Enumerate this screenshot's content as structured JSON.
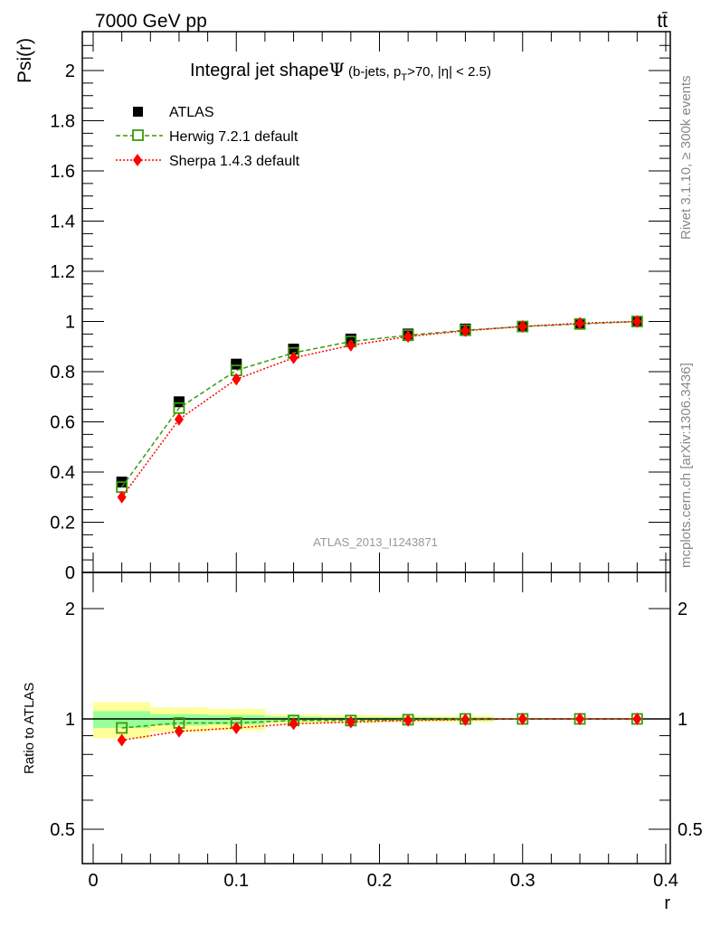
{
  "chart_data": {
    "type": "line",
    "header_left": "7000 GeV pp",
    "header_right": "tt̄",
    "title": "Integral jet shape",
    "title_symbol": "Ψ",
    "title_cuts_a": "(b-jets, p",
    "title_cuts_sub": "T",
    "title_cuts_b": ">70, |η| < 2.5)",
    "ylabel": "Psi(r)",
    "ratio_ylabel": "Ratio to ATLAS",
    "xlabel": "r",
    "xlim": [
      0,
      0.4
    ],
    "ylim": [
      0,
      2.15
    ],
    "ratio_ylim": [
      0.4,
      2.5
    ],
    "ratio_scale": "log",
    "xticks": [
      "0",
      "0.1",
      "0.2",
      "0.3",
      "0.4"
    ],
    "yticks": [
      "0",
      "0.2",
      "0.4",
      "0.6",
      "0.8",
      "1",
      "1.2",
      "1.4",
      "1.6",
      "1.8",
      "2"
    ],
    "ratio_yticks": [
      "0.5",
      "1",
      "2"
    ],
    "side_text_1": "Rivet 3.1.10, ≥ 300k events",
    "side_text_2": "mcplots.cern.ch [arXiv:1306.3436]",
    "watermark": "ATLAS_2013_I1243871",
    "legend_position": "top-left",
    "x": [
      0.02,
      0.06,
      0.1,
      0.14,
      0.18,
      0.22,
      0.26,
      0.3,
      0.34,
      0.38
    ],
    "series": [
      {
        "name": "ATLAS",
        "color": "#000000",
        "values": [
          0.36,
          0.68,
          0.83,
          0.89,
          0.93,
          0.95,
          0.97,
          0.98,
          0.99,
          1.0
        ]
      },
      {
        "name": "Herwig 7.2.1 default",
        "color": "#3a9a0a",
        "values": [
          0.34,
          0.655,
          0.805,
          0.875,
          0.92,
          0.945,
          0.965,
          0.98,
          0.99,
          1.0
        ],
        "ratio": [
          0.945,
          0.975,
          0.975,
          0.99,
          0.99,
          0.995,
          1.0,
          1.0,
          1.0,
          1.0
        ]
      },
      {
        "name": "Sherpa 1.4.3 default",
        "color": "#ff0000",
        "values": [
          0.3,
          0.61,
          0.77,
          0.855,
          0.905,
          0.94,
          0.963,
          0.98,
          0.993,
          1.0
        ],
        "ratio": [
          0.875,
          0.925,
          0.945,
          0.97,
          0.98,
          0.99,
          0.995,
          1.0,
          1.0,
          1.0
        ]
      }
    ],
    "ratio_band_bins": [
      [
        0,
        0.04
      ],
      [
        0.04,
        0.08
      ],
      [
        0.08,
        0.12
      ],
      [
        0.12,
        0.16
      ],
      [
        0.16,
        0.2
      ],
      [
        0.2,
        0.24
      ],
      [
        0.24,
        0.28
      ]
    ],
    "ratio_band_yellow": [
      [
        0.885,
        1.11
      ],
      [
        0.92,
        1.075
      ],
      [
        0.93,
        1.065
      ],
      [
        0.97,
        1.03
      ],
      [
        0.975,
        1.025
      ],
      [
        0.98,
        1.02
      ],
      [
        0.98,
        1.02
      ]
    ],
    "ratio_band_green": [
      [
        0.945,
        1.05
      ],
      [
        0.96,
        1.03
      ],
      [
        0.965,
        1.025
      ],
      [
        0.985,
        1.015
      ],
      [
        0.99,
        1.01
      ],
      [
        0.99,
        1.01
      ],
      [
        0.99,
        1.01
      ]
    ]
  }
}
